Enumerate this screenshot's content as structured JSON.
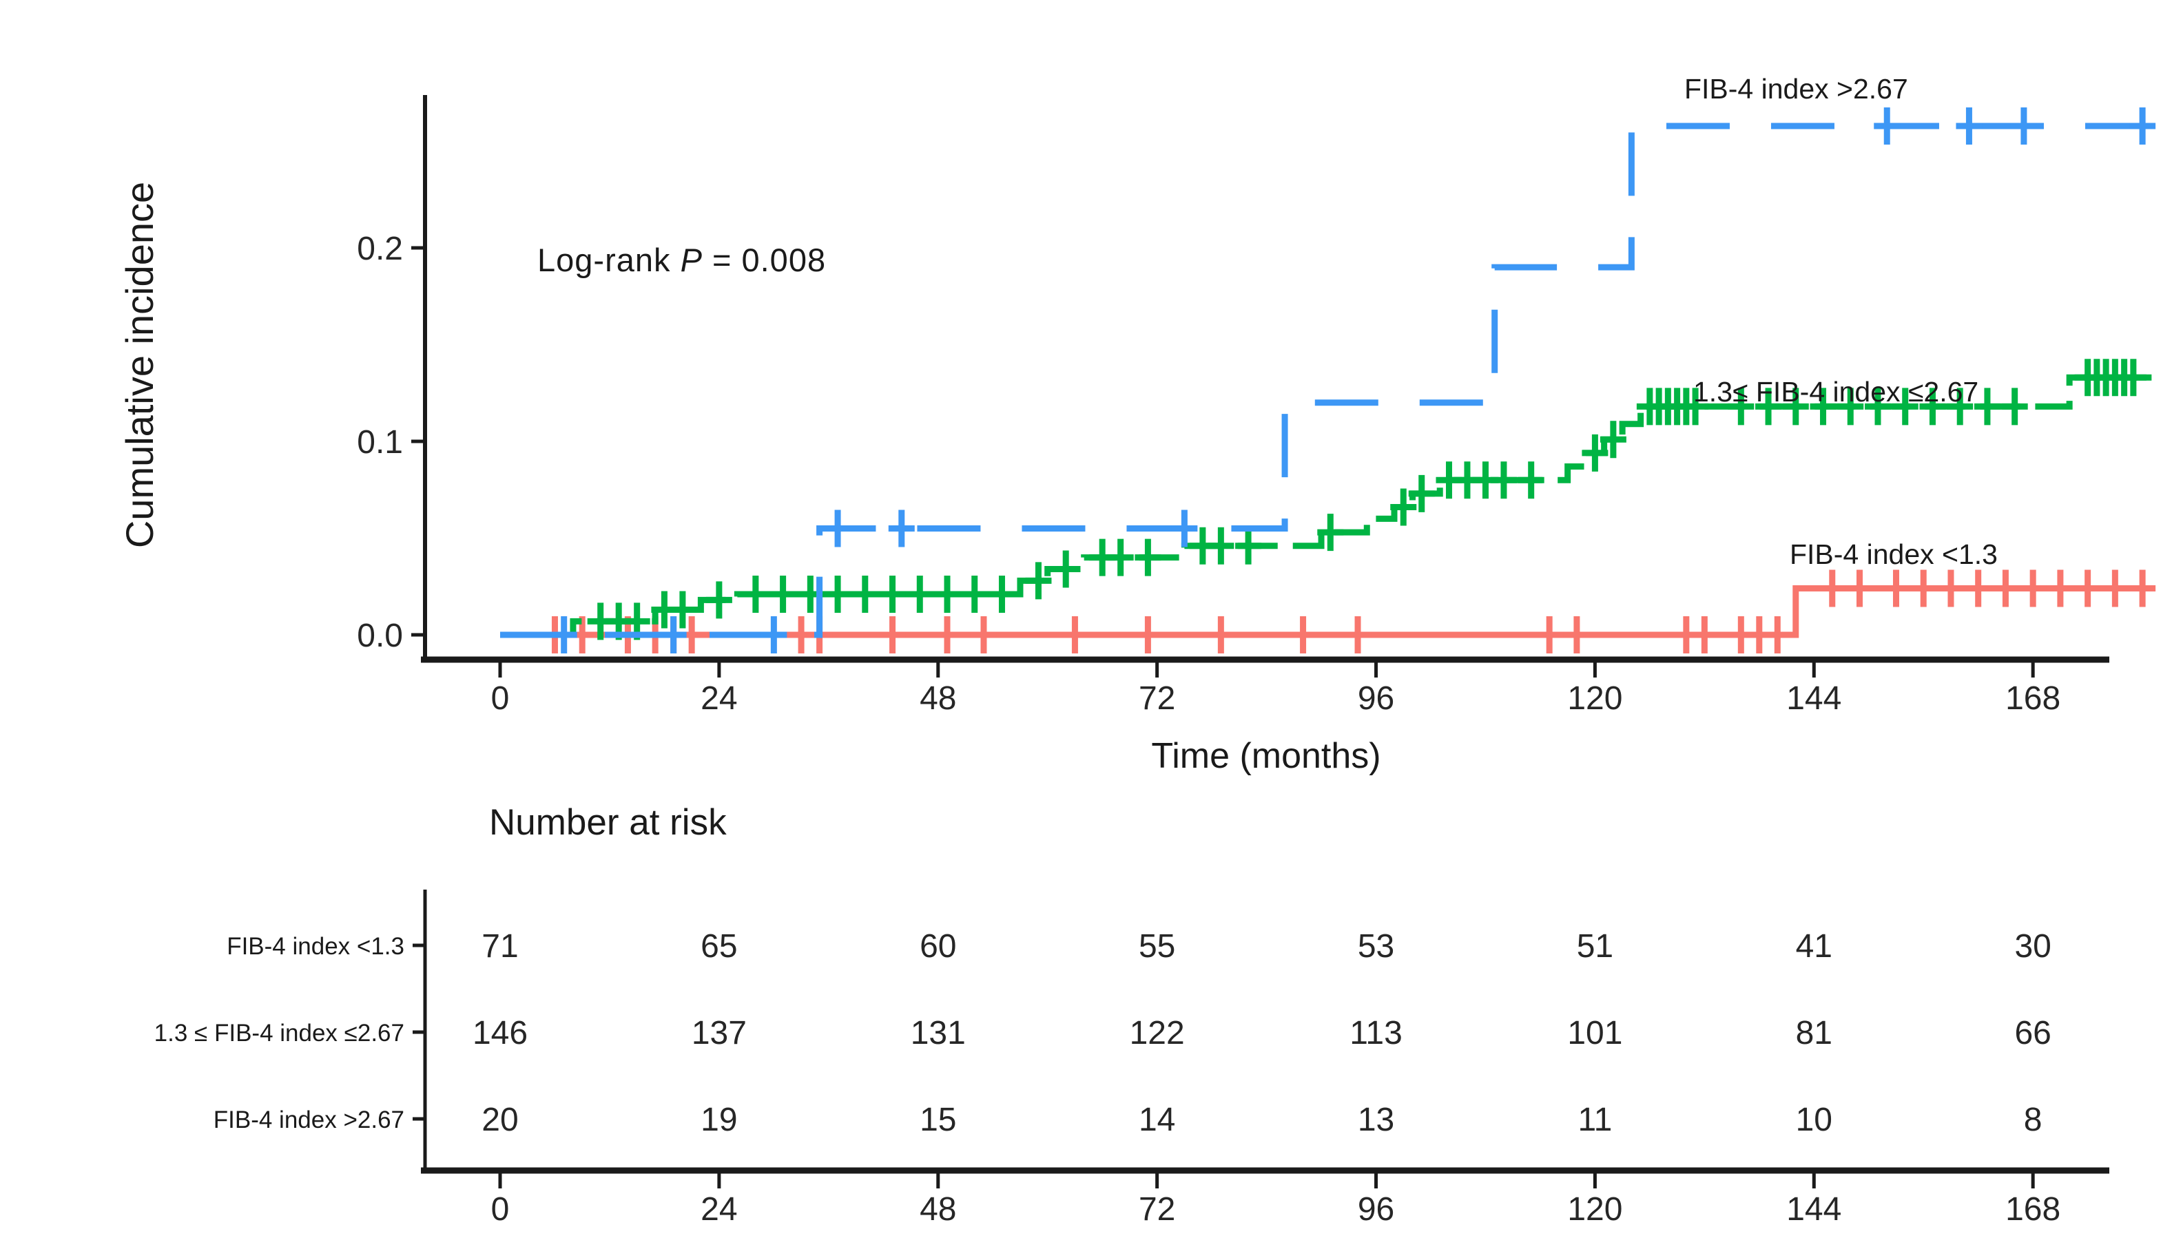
{
  "figure": {
    "background": "#ffffff",
    "y_axis_title": "Cumulative incidence",
    "x_axis_title": "Time (months)",
    "annotation": {
      "prefix": "Log-rank ",
      "p": "P",
      "rest": " = 0.008"
    },
    "risk_header": "Number at risk"
  },
  "chart_data": {
    "type": "line",
    "subtype": "kaplan-meier-cumulative-incidence-step-curves-with-censor-marks",
    "title": "",
    "xlabel": "Time (months)",
    "ylabel": "Cumulative incidence",
    "annotation": "Log-rank P = 0.008",
    "xlim": [
      0,
      181
    ],
    "ylim": [
      0,
      0.278
    ],
    "xticks": [
      "0",
      "24",
      "48",
      "72",
      "96",
      "120",
      "144",
      "168"
    ],
    "xtick_values": [
      0,
      24,
      48,
      72,
      96,
      120,
      144,
      168
    ],
    "yticks": [
      "0.0",
      "0.1",
      "0.2"
    ],
    "ytick_values": [
      0.0,
      0.1,
      0.2
    ],
    "grid": false,
    "legend_position": "labels-at-line-ends",
    "series": [
      {
        "name": "FIB-4 index <1.3",
        "color": "#F8766D",
        "dash": "solid",
        "steps": [
          [
            0,
            0
          ],
          [
            142,
            0.024
          ],
          [
            181,
            0.024
          ]
        ],
        "censor_times": [
          6,
          9,
          14,
          17,
          19,
          21,
          33,
          35,
          43,
          49,
          53,
          63,
          71,
          79,
          88,
          94,
          115,
          118,
          130,
          132,
          136,
          138,
          140,
          146,
          149,
          153,
          156,
          159,
          162,
          165,
          168,
          171,
          174,
          177,
          180
        ]
      },
      {
        "name": "1.3≤ FIB-4 index ≤2.67",
        "color": "#00B443",
        "dash": "dashed",
        "steps": [
          [
            0,
            0
          ],
          [
            8,
            0.007
          ],
          [
            17,
            0.013
          ],
          [
            22,
            0.018
          ],
          [
            26,
            0.021
          ],
          [
            57,
            0.028
          ],
          [
            60,
            0.034
          ],
          [
            64,
            0.04
          ],
          [
            75,
            0.046
          ],
          [
            90,
            0.053
          ],
          [
            95,
            0.06
          ],
          [
            98,
            0.066
          ],
          [
            100,
            0.073
          ],
          [
            103,
            0.08
          ],
          [
            117,
            0.087
          ],
          [
            119,
            0.094
          ],
          [
            121,
            0.101
          ],
          [
            123,
            0.109
          ],
          [
            125,
            0.118
          ],
          [
            172,
            0.133
          ],
          [
            181,
            0.133
          ]
        ],
        "censor_times": [
          11,
          13,
          15,
          18,
          20,
          24,
          28,
          31,
          34,
          37,
          40,
          43,
          46,
          49,
          52,
          55,
          59,
          62,
          66,
          68,
          71,
          77,
          79,
          82,
          91,
          99,
          101,
          104,
          106,
          108,
          110,
          113,
          120,
          122,
          126,
          127,
          128,
          129,
          130,
          131,
          136,
          139,
          142,
          145,
          148,
          151,
          154,
          157,
          160,
          163,
          166,
          174,
          175,
          176,
          177,
          178,
          179
        ]
      },
      {
        "name": "FIB-4 index >2.67",
        "color": "#3D97F5",
        "dash": "long-dashed",
        "steps": [
          [
            0,
            0
          ],
          [
            35,
            0.055
          ],
          [
            86,
            0.12
          ],
          [
            109,
            0.19
          ],
          [
            124,
            0.263
          ],
          [
            181,
            0.263
          ]
        ],
        "censor_times": [
          7,
          19,
          30,
          37,
          44,
          75,
          152,
          161,
          167,
          180
        ]
      }
    ],
    "number_at_risk": {
      "title": "Number at risk",
      "times": [
        "0",
        "24",
        "48",
        "72",
        "96",
        "120",
        "144",
        "168"
      ],
      "rows": [
        {
          "label": "FIB-4 index <1.3",
          "counts": [
            "71",
            "65",
            "60",
            "55",
            "53",
            "51",
            "41",
            "30"
          ]
        },
        {
          "label": "1.3 ≤ FIB-4 index ≤2.67",
          "counts": [
            "146",
            "137",
            "131",
            "122",
            "113",
            "101",
            "81",
            "66"
          ]
        },
        {
          "label": "FIB-4 index >2.67",
          "counts": [
            "20",
            "19",
            "15",
            "14",
            "13",
            "11",
            "10",
            "8"
          ]
        }
      ]
    }
  }
}
